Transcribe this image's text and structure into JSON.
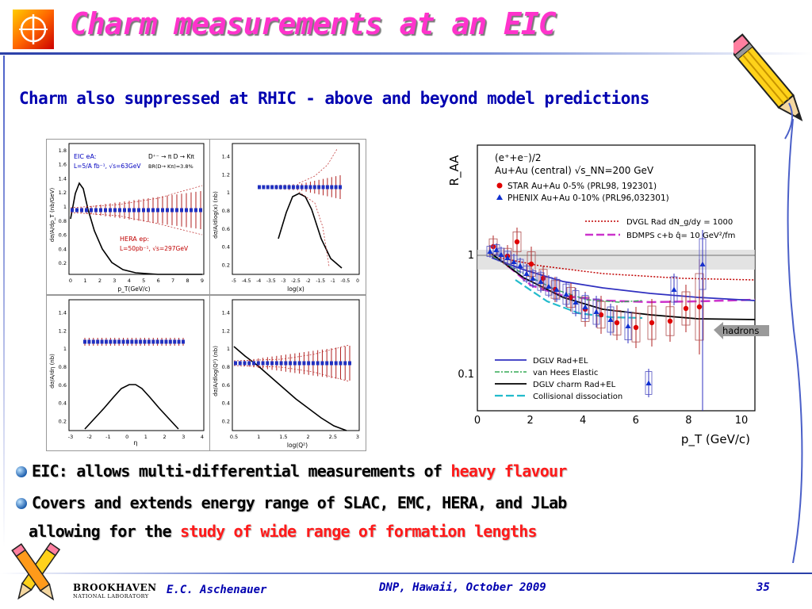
{
  "header": {
    "title": "Charm measurements at an EIC",
    "subtitle": "Charm also suppressed at RHIC - above and beyond model predictions"
  },
  "bullets": [
    {
      "parts": [
        {
          "text": "EIC: allows multi-differential measurements of ",
          "red": false
        },
        {
          "text": "heavy flavour",
          "red": true
        }
      ]
    },
    {
      "parts": [
        {
          "text": "Covers and extends energy range of SLAC, EMC, HERA, and JLab",
          "red": false
        }
      ]
    },
    {
      "parts": [
        {
          "text": "allowing for the ",
          "red": false
        },
        {
          "text": "study of wide range of formation lengths",
          "red": true
        }
      ]
    }
  ],
  "footer": {
    "logo_line1": "BROOKHAVEN",
    "logo_line2": "NATIONAL LABORATORY",
    "author": "E.C. Aschenauer",
    "event": "DNP, Hawaii, October 2009",
    "page": "35"
  },
  "panels": {
    "p1": {
      "ylabel": "dσ/A/dp_T (nb/GeV)",
      "xlabel": "p_T(GeV/c)",
      "xticks": [
        "0",
        "1",
        "2",
        "3",
        "4",
        "5",
        "6",
        "7",
        "8",
        "9"
      ],
      "yticks": [
        "1.8",
        "1.6",
        "1.4",
        "1.2",
        "1",
        "0.8",
        "0.6",
        "0.4",
        "0.2"
      ],
      "eic_l1": "EIC eA:",
      "eic_l2": "L=5/A fb⁻¹, √s=63GeV",
      "decay": "D⁺⁻ → π D → Kπ",
      "br": "BR(D→ Kπ)=3.8%",
      "hera_l1": "HERA ep:",
      "hera_l2": "L=50pb⁻¹, √s=297GeV"
    },
    "p2": {
      "ylabel": "dσ/A/dlog(x) (nb)",
      "xlabel": "log(x)",
      "xticks": [
        "-5",
        "-4.5",
        "-4",
        "-3.5",
        "-3",
        "-2.5",
        "-2",
        "-1.5",
        "-1",
        "-0.5",
        "0"
      ],
      "yticks": [
        "1.4",
        "1.2",
        "1",
        "0.8",
        "0.6",
        "0.4",
        "0.2"
      ]
    },
    "p3": {
      "ylabel": "dσ/A/dη (nb)",
      "xlabel": "η",
      "xticks": [
        "-3",
        "-2",
        "-1",
        "0",
        "1",
        "2",
        "3",
        "4"
      ],
      "yticks": [
        "1.4",
        "1.2",
        "1",
        "0.8",
        "0.6",
        "0.4",
        "0.2"
      ]
    },
    "p4": {
      "ylabel": "dσ/A/dlog(Q²) (nb)",
      "xlabel": "log(Q²)",
      "xticks": [
        "0.5",
        "1",
        "1.5",
        "2",
        "2.5",
        "3"
      ],
      "yticks": [
        "1.4",
        "1.2",
        "1",
        "0.8",
        "0.6",
        "0.4",
        "0.2"
      ]
    },
    "raa": {
      "ylabel": "R_AA",
      "xlabel": "p_T (GeV/c)",
      "xticks": [
        "0",
        "2",
        "4",
        "6",
        "8",
        "10"
      ],
      "yticks": [
        "1",
        "0.1"
      ],
      "header1": "(e⁺+e⁻)/2",
      "header2": "Au+Au (central) √s_NN=200 GeV",
      "legend_star": "STAR Au+Au 0-5% (PRL98, 192301)",
      "legend_phenix": "PHENIX Au+Au  0-10% (PRL96,032301)",
      "legend_dvgl": "DVGL Rad dN_g/dy = 1000",
      "legend_bdmps": "BDMPS c+b q̂= 10 GeV²/fm",
      "hadrons": "hadrons",
      "legend_dglv": "DGLV Rad+EL",
      "legend_vanhees": "van Hees Elastic",
      "legend_dglv_charm": "DGLV charm Rad+EL",
      "legend_coll": "Collisional dissociation"
    }
  },
  "colors": {
    "title": "#ff33cc",
    "subtitle": "#0000b0",
    "highlight": "#ff1a1a"
  }
}
